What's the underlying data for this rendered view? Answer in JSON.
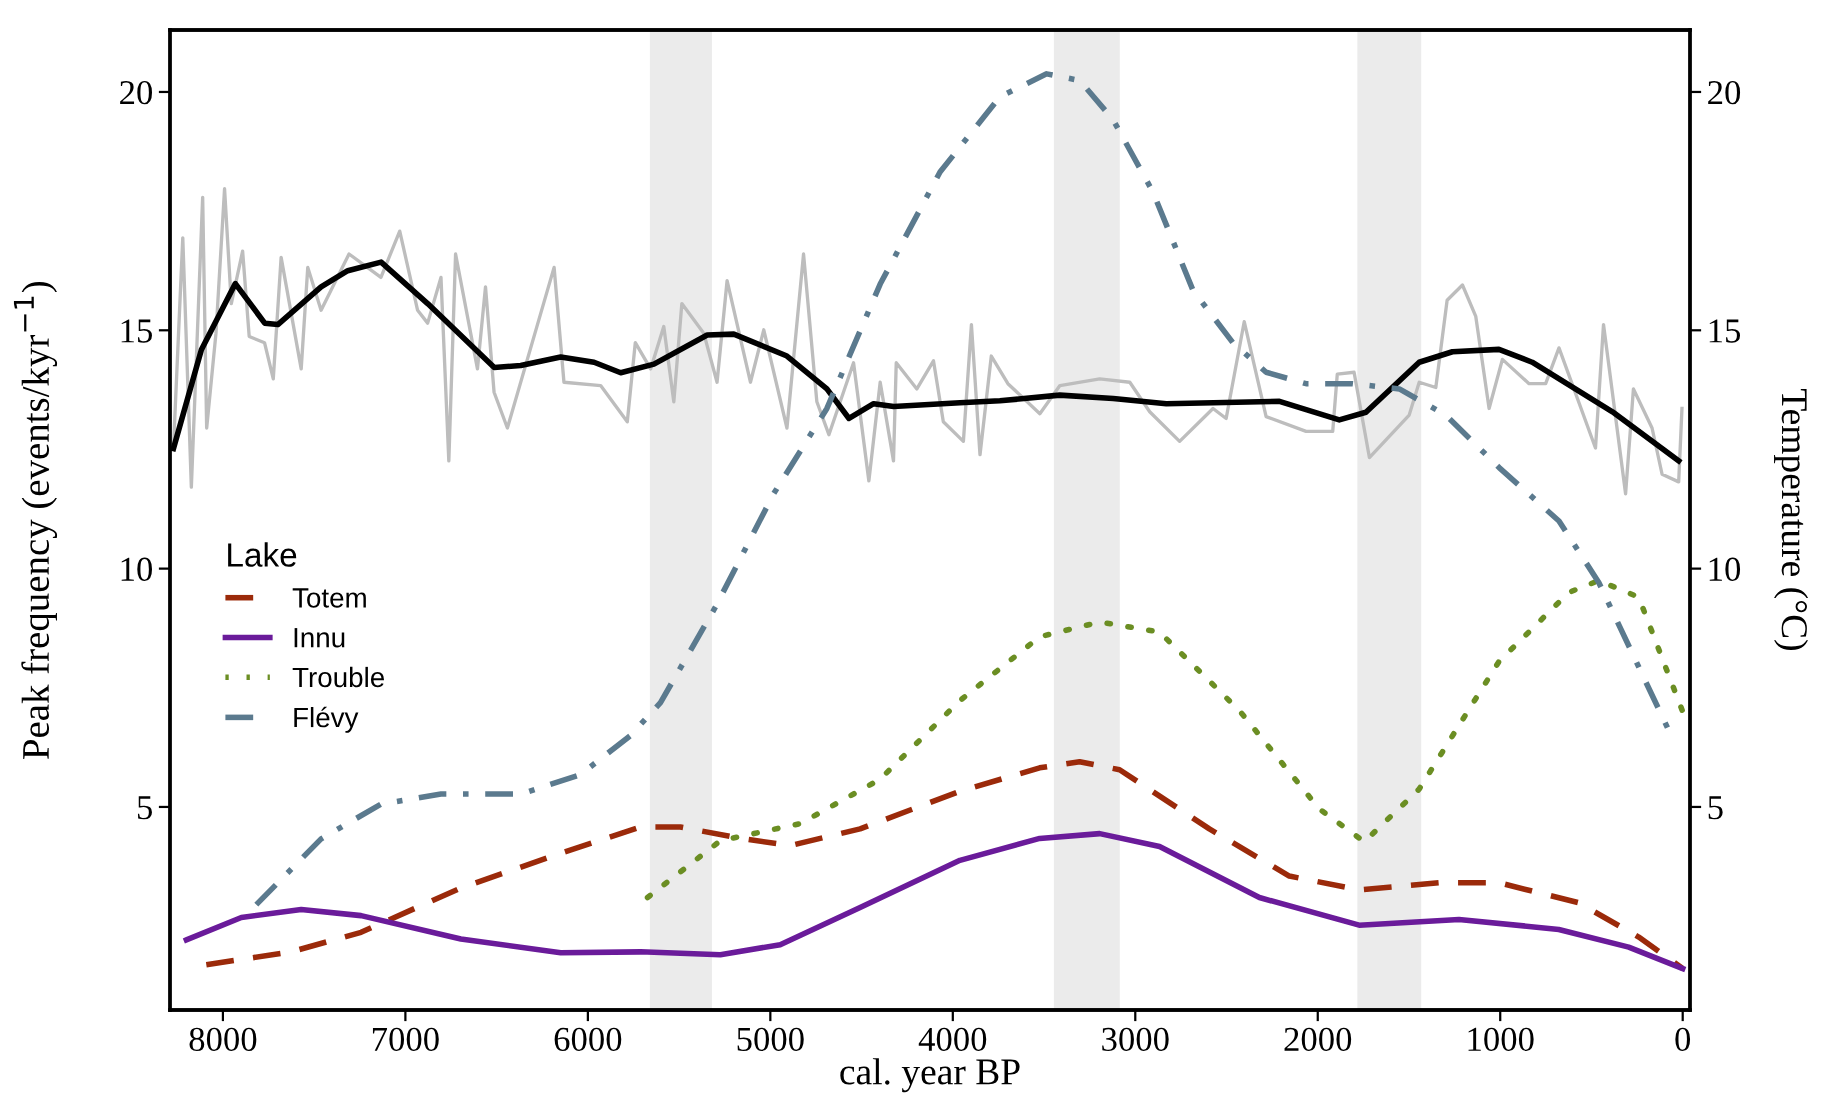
{
  "chart_data": {
    "type": "line",
    "xlabel": "cal. year BP",
    "ylabel": "Peak frequency (events/kyr$^{−1}$)",
    "y2label": "Temperature (°C)",
    "legend_title": "Lake",
    "legend": "left",
    "grid": false,
    "xlim": [
      8290,
      -40
    ],
    "xticks": [
      8000,
      7000,
      6000,
      5000,
      4000,
      3000,
      2000,
      1000,
      0
    ],
    "ylim": [
      0.74,
      21.3
    ],
    "yticks": [
      5,
      10,
      15,
      20
    ],
    "y2lim": [
      0.74,
      21.3
    ],
    "y2ticks": [
      5,
      10,
      15,
      20
    ],
    "bands": [
      {
        "axis": "x",
        "from": 5660,
        "to": 5320,
        "color": "#ebebeb"
      },
      {
        "axis": "x",
        "from": 3446,
        "to": 3085,
        "color": "#ebebeb"
      },
      {
        "axis": "x",
        "from": 1783,
        "to": 1433,
        "color": "#ebebeb"
      }
    ],
    "series": [
      {
        "axis": "y2",
        "color": "#bdbdbd",
        "line_style": "solid",
        "x": [
          8271,
          8220,
          8173,
          8111,
          8089,
          8038,
          7991,
          7954,
          7892,
          7856,
          7772,
          7724,
          7681,
          7571,
          7535,
          7462,
          7309,
          7134,
          7031,
          6933,
          6878,
          6805,
          6762,
          6725,
          6605,
          6561,
          6514,
          6441,
          6185,
          6131,
          5930,
          5784,
          5740,
          5656,
          5584,
          5529,
          5485,
          5365,
          5292,
          5237,
          5109,
          5036,
          4909,
          4818,
          4745,
          4679,
          4544,
          4460,
          4398,
          4325,
          4310,
          4197,
          4106,
          4052,
          3942,
          3898,
          3851,
          3789,
          3698,
          3523,
          3413,
          3195,
          3030,
          2921,
          2757,
          2574,
          2502,
          2403,
          2283,
          2064,
          1918,
          1893,
          1801,
          1717,
          1499,
          1444,
          1353,
          1291,
          1207,
          1134,
          1061,
          988,
          842,
          751,
          678,
          478,
          434,
          313,
          270,
          168,
          113,
          22,
          4
        ],
        "values": [
          12.53,
          16.94,
          11.71,
          17.79,
          12.95,
          14.94,
          17.97,
          15.56,
          16.66,
          14.87,
          14.74,
          13.98,
          16.53,
          14.19,
          16.32,
          15.42,
          16.6,
          16.11,
          17.08,
          15.42,
          15.15,
          16.11,
          12.26,
          16.6,
          14.19,
          15.91,
          13.7,
          12.95,
          16.32,
          13.91,
          13.84,
          13.08,
          14.74,
          14.19,
          15.08,
          13.5,
          15.56,
          14.94,
          13.91,
          16.04,
          13.91,
          15.01,
          12.95,
          16.6,
          13.5,
          12.81,
          14.32,
          11.84,
          13.91,
          12.26,
          14.32,
          13.77,
          14.36,
          13.08,
          12.67,
          15.12,
          12.39,
          14.46,
          13.88,
          13.25,
          13.84,
          13.98,
          13.91,
          13.29,
          12.67,
          13.36,
          13.15,
          15.18,
          13.19,
          12.88,
          12.88,
          14.08,
          14.12,
          12.33,
          13.22,
          13.91,
          13.8,
          15.63,
          15.95,
          15.29,
          13.36,
          14.39,
          13.88,
          13.88,
          14.63,
          12.53,
          15.12,
          11.57,
          13.77,
          12.95,
          11.98,
          11.82,
          13.36
        ]
      },
      {
        "axis": "y2",
        "color": "#000000",
        "line_style": "solid",
        "x": [
          8271,
          8118,
          7932,
          7771,
          7699,
          7462,
          7316,
          7133,
          6878,
          6513,
          6368,
          6149,
          5966,
          5820,
          5638,
          5346,
          5200,
          4909,
          4690,
          4569,
          4434,
          4324,
          3961,
          3742,
          3414,
          3121,
          2830,
          2210,
          1882,
          1736,
          1444,
          1262,
          1007,
          825,
          385,
          22
        ],
        "values": [
          12.52,
          14.59,
          15.98,
          15.15,
          15.12,
          15.91,
          16.25,
          16.43,
          15.56,
          14.22,
          14.26,
          14.44,
          14.33,
          14.11,
          14.29,
          14.9,
          14.92,
          14.46,
          13.77,
          13.15,
          13.46,
          13.4,
          13.48,
          13.52,
          13.64,
          13.57,
          13.46,
          13.51,
          13.12,
          13.28,
          14.33,
          14.55,
          14.6,
          14.33,
          13.29,
          12.26
        ]
      },
      {
        "name": "Totem",
        "color": "#9b2a0a",
        "line_style": "dashed",
        "x": [
          8091,
          7626,
          7243,
          6696,
          6149,
          5711,
          5493,
          5164,
          4891,
          4508,
          3961,
          3524,
          3305,
          3086,
          2594,
          2156,
          1773,
          1335,
          1007,
          570,
          241,
          0
        ],
        "values": [
          1.69,
          1.96,
          2.37,
          3.3,
          4.03,
          4.58,
          4.58,
          4.34,
          4.19,
          4.54,
          5.33,
          5.82,
          5.95,
          5.78,
          4.54,
          3.55,
          3.26,
          3.41,
          3.41,
          2.99,
          2.27,
          1.61
        ]
      },
      {
        "name": "Innu",
        "color": "#6a1b9a",
        "line_style": "solid",
        "x": [
          8200,
          7899,
          7571,
          7243,
          6696,
          6149,
          5711,
          5274,
          4946,
          4508,
          3961,
          3524,
          3195,
          2867,
          2320,
          1773,
          1226,
          679,
          296,
          0
        ],
        "values": [
          2.21,
          2.68,
          2.85,
          2.72,
          2.23,
          1.94,
          1.96,
          1.9,
          2.11,
          2.89,
          3.88,
          4.34,
          4.44,
          4.17,
          3.1,
          2.52,
          2.64,
          2.43,
          2.06,
          1.61
        ]
      },
      {
        "name": "Trouble",
        "color": "#6b8e23",
        "line_style": "dotted",
        "x": [
          5673,
          5274,
          4836,
          4399,
          3961,
          3524,
          3195,
          2867,
          2429,
          1992,
          1745,
          1445,
          1007,
          624,
          460,
          241,
          0
        ],
        "values": [
          3.1,
          4.29,
          4.65,
          5.58,
          7.23,
          8.57,
          8.88,
          8.67,
          7.02,
          4.96,
          4.27,
          5.37,
          8.05,
          9.5,
          9.75,
          9.4,
          7.0
        ]
      },
      {
        "name": "Flévy",
        "color": "#5b7a8e",
        "line_style": "dashdot",
        "x": [
          7817,
          7462,
          7134,
          6805,
          6368,
          6040,
          5766,
          5602,
          5300,
          4982,
          4690,
          4398,
          4070,
          3742,
          3486,
          3304,
          3122,
          2903,
          2684,
          2465,
          2283,
          2064,
          1809,
          1553,
          1298,
          1006,
          678,
          460,
          77
        ],
        "values": [
          2.95,
          4.33,
          5.06,
          5.27,
          5.27,
          5.68,
          6.5,
          7.19,
          9.2,
          11.57,
          13.36,
          15.97,
          18.32,
          19.9,
          20.38,
          20.24,
          19.42,
          17.9,
          15.84,
          14.74,
          14.12,
          13.88,
          13.88,
          13.77,
          13.22,
          12.12,
          11.0,
          9.71,
          6.61
        ]
      }
    ]
  }
}
